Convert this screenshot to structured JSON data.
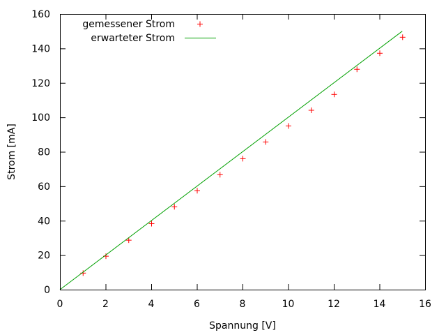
{
  "chart_data": {
    "type": "scatter",
    "xlabel": "Spannung [V]",
    "ylabel": "Strom [mA]",
    "xlim": [
      0,
      16
    ],
    "ylim": [
      0,
      160
    ],
    "xticks": [
      0,
      2,
      4,
      6,
      8,
      10,
      12,
      14,
      16
    ],
    "yticks": [
      0,
      20,
      40,
      60,
      80,
      100,
      120,
      140,
      160
    ],
    "grid": false,
    "legend_position": "top-left",
    "series": [
      {
        "name": "gemessener Strom",
        "style": "points",
        "marker": "plus",
        "color": "#ff0000",
        "x": [
          1,
          2,
          3,
          4,
          5,
          6,
          7,
          8,
          9,
          10,
          11,
          12,
          13,
          14,
          15
        ],
        "y": [
          9.8,
          19.6,
          28.9,
          38.5,
          48.3,
          57.6,
          66.9,
          76.2,
          85.9,
          95.2,
          104.3,
          113.5,
          128.1,
          137.4,
          146.7
        ]
      },
      {
        "name": "erwarteter Strom",
        "style": "line",
        "color": "#00a000",
        "x": [
          0,
          15
        ],
        "y": [
          0,
          150
        ]
      }
    ]
  }
}
